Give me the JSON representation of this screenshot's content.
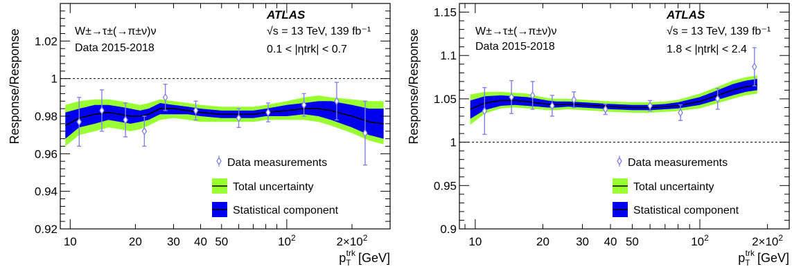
{
  "colors": {
    "total_band": "#99ff33",
    "stat_band": "#0000ee",
    "fit_line": "#000000",
    "marker": "#8080ee"
  },
  "chart_data": [
    {
      "type": "line",
      "xscale": "log",
      "xlim": [
        9,
        300
      ],
      "ylim": [
        0.92,
        1.04
      ],
      "xticks": [
        {
          "value": 10,
          "label": "10"
        },
        {
          "value": 20,
          "label": "20"
        },
        {
          "value": 30,
          "label": "30"
        },
        {
          "value": 40,
          "label": "40"
        },
        {
          "value": 50,
          "label": "50"
        },
        {
          "value": 100,
          "label": "10",
          "sup": "2"
        },
        {
          "value": 200,
          "label": "2×10",
          "sup": "2"
        }
      ],
      "yticks": [
        {
          "value": 0.92,
          "label": "0.92"
        },
        {
          "value": 0.94,
          "label": "0.94"
        },
        {
          "value": 0.96,
          "label": "0.96"
        },
        {
          "value": 0.98,
          "label": "0.98"
        },
        {
          "value": 1.0,
          "label": "1"
        },
        {
          "value": 1.02,
          "label": "1.02"
        }
      ],
      "reference_line": 1.0,
      "atlas_label": "ATLAS",
      "process_label": "W±→τ±(→π±ν)ν",
      "data_label": "Data 2015-2018",
      "energy_label": "√s = 13 TeV, 139 fb⁻¹",
      "eta_label": "0.1 < |ηtrk| < 0.7",
      "xlabel": "p",
      "xlabel_sub": "T",
      "xlabel_sup": "trk",
      "xlabel_unit": "[GeV]",
      "ylabel": "Response/Response",
      "legend": {
        "data": "Data measurements",
        "total": "Total uncertainty",
        "stat": "Statistical component"
      },
      "fit": {
        "x": [
          9.5,
          11,
          13,
          15,
          17,
          19,
          21,
          23,
          26,
          30,
          35,
          40,
          50,
          60,
          70,
          80,
          100,
          120,
          140,
          160,
          200,
          240,
          280
        ],
        "y": [
          0.975,
          0.979,
          0.981,
          0.982,
          0.981,
          0.98,
          0.98,
          0.981,
          0.984,
          0.984,
          0.983,
          0.982,
          0.981,
          0.981,
          0.981,
          0.982,
          0.983,
          0.984,
          0.984,
          0.983,
          0.98,
          0.977,
          0.976
        ],
        "total_lo": [
          0.964,
          0.97,
          0.972,
          0.974,
          0.973,
          0.972,
          0.973,
          0.975,
          0.978,
          0.979,
          0.978,
          0.977,
          0.977,
          0.977,
          0.977,
          0.978,
          0.978,
          0.978,
          0.977,
          0.975,
          0.971,
          0.967,
          0.965
        ],
        "total_hi": [
          0.986,
          0.988,
          0.989,
          0.989,
          0.988,
          0.987,
          0.986,
          0.987,
          0.989,
          0.988,
          0.987,
          0.986,
          0.985,
          0.985,
          0.985,
          0.986,
          0.988,
          0.99,
          0.991,
          0.99,
          0.989,
          0.988,
          0.988
        ],
        "stat_lo": [
          0.968,
          0.974,
          0.976,
          0.978,
          0.977,
          0.976,
          0.977,
          0.978,
          0.981,
          0.981,
          0.981,
          0.98,
          0.979,
          0.979,
          0.979,
          0.98,
          0.98,
          0.981,
          0.98,
          0.978,
          0.974,
          0.97,
          0.968
        ],
        "stat_hi": [
          0.982,
          0.984,
          0.986,
          0.986,
          0.985,
          0.984,
          0.983,
          0.984,
          0.987,
          0.986,
          0.985,
          0.984,
          0.983,
          0.983,
          0.983,
          0.984,
          0.986,
          0.987,
          0.988,
          0.988,
          0.986,
          0.984,
          0.984
        ]
      },
      "points": [
        {
          "x": 11,
          "y": 0.977,
          "err": 0.013
        },
        {
          "x": 14,
          "y": 0.983,
          "err": 0.011
        },
        {
          "x": 18,
          "y": 0.978,
          "err": 0.009
        },
        {
          "x": 22,
          "y": 0.972,
          "err": 0.008
        },
        {
          "x": 27.5,
          "y": 0.99,
          "err": 0.007
        },
        {
          "x": 38,
          "y": 0.983,
          "err": 0.005
        },
        {
          "x": 60,
          "y": 0.979,
          "err": 0.005
        },
        {
          "x": 82,
          "y": 0.982,
          "err": 0.005
        },
        {
          "x": 120,
          "y": 0.986,
          "err": 0.006
        },
        {
          "x": 170,
          "y": 0.988,
          "err": 0.01
        },
        {
          "x": 230,
          "y": 0.971,
          "err": 0.017
        }
      ]
    },
    {
      "type": "line",
      "xscale": "log",
      "xlim": [
        8.5,
        250
      ],
      "ylim": [
        0.9,
        1.16
      ],
      "xticks": [
        {
          "value": 10,
          "label": "10"
        },
        {
          "value": 20,
          "label": "20"
        },
        {
          "value": 30,
          "label": "30"
        },
        {
          "value": 40,
          "label": "40"
        },
        {
          "value": 50,
          "label": "50"
        },
        {
          "value": 100,
          "label": "10",
          "sup": "2"
        },
        {
          "value": 200,
          "label": "2×10",
          "sup": "2"
        }
      ],
      "yticks": [
        {
          "value": 0.9,
          "label": "0.9"
        },
        {
          "value": 0.95,
          "label": "0.95"
        },
        {
          "value": 1.0,
          "label": "1"
        },
        {
          "value": 1.05,
          "label": "1.05"
        },
        {
          "value": 1.1,
          "label": "1.1"
        },
        {
          "value": 1.15,
          "label": "1.15"
        }
      ],
      "reference_line": 1.0,
      "atlas_label": "ATLAS",
      "process_label": "W±→τ±(→π±ν)ν",
      "data_label": "Data 2015-2018",
      "energy_label": "√s = 13 TeV, 139 fb⁻¹",
      "eta_label": "1.8 < |ηtrk| < 2.4",
      "xlabel": "p",
      "xlabel_sub": "T",
      "xlabel_sup": "trk",
      "xlabel_unit": "[GeV]",
      "ylabel": "Response/Response",
      "legend": {
        "data": "Data measurements",
        "total": "Total uncertainty",
        "stat": "Statistical component"
      },
      "fit": {
        "x": [
          9.5,
          11,
          13,
          15,
          17,
          19,
          21,
          23,
          26,
          30,
          35,
          40,
          50,
          60,
          70,
          80,
          100,
          120,
          140,
          160,
          180
        ],
        "y": [
          1.038,
          1.045,
          1.048,
          1.048,
          1.047,
          1.045,
          1.044,
          1.043,
          1.044,
          1.043,
          1.042,
          1.041,
          1.04,
          1.04,
          1.041,
          1.042,
          1.047,
          1.054,
          1.06,
          1.064,
          1.066
        ],
        "total_lo": [
          1.02,
          1.033,
          1.039,
          1.04,
          1.039,
          1.038,
          1.037,
          1.037,
          1.038,
          1.037,
          1.036,
          1.035,
          1.034,
          1.034,
          1.035,
          1.036,
          1.039,
          1.045,
          1.05,
          1.054,
          1.056
        ],
        "total_hi": [
          1.055,
          1.058,
          1.058,
          1.057,
          1.056,
          1.053,
          1.051,
          1.05,
          1.05,
          1.049,
          1.048,
          1.047,
          1.046,
          1.046,
          1.047,
          1.049,
          1.056,
          1.064,
          1.071,
          1.075,
          1.077
        ],
        "stat_lo": [
          1.027,
          1.037,
          1.042,
          1.043,
          1.042,
          1.041,
          1.04,
          1.04,
          1.041,
          1.04,
          1.039,
          1.038,
          1.037,
          1.037,
          1.038,
          1.039,
          1.043,
          1.049,
          1.054,
          1.058,
          1.06
        ],
        "stat_hi": [
          1.048,
          1.053,
          1.054,
          1.053,
          1.052,
          1.05,
          1.048,
          1.047,
          1.047,
          1.046,
          1.045,
          1.044,
          1.043,
          1.043,
          1.044,
          1.046,
          1.052,
          1.06,
          1.067,
          1.071,
          1.073
        ]
      },
      "points": [
        {
          "x": 11,
          "y": 1.036,
          "err": 0.027
        },
        {
          "x": 14.5,
          "y": 1.052,
          "err": 0.019
        },
        {
          "x": 18,
          "y": 1.054,
          "err": 0.016
        },
        {
          "x": 22,
          "y": 1.042,
          "err": 0.012
        },
        {
          "x": 27.5,
          "y": 1.049,
          "err": 0.009
        },
        {
          "x": 38,
          "y": 1.038,
          "err": 0.006
        },
        {
          "x": 60,
          "y": 1.042,
          "err": 0.006
        },
        {
          "x": 82,
          "y": 1.034,
          "err": 0.009
        },
        {
          "x": 120,
          "y": 1.05,
          "err": 0.012
        },
        {
          "x": 175,
          "y": 1.087,
          "err": 0.022
        }
      ]
    }
  ]
}
